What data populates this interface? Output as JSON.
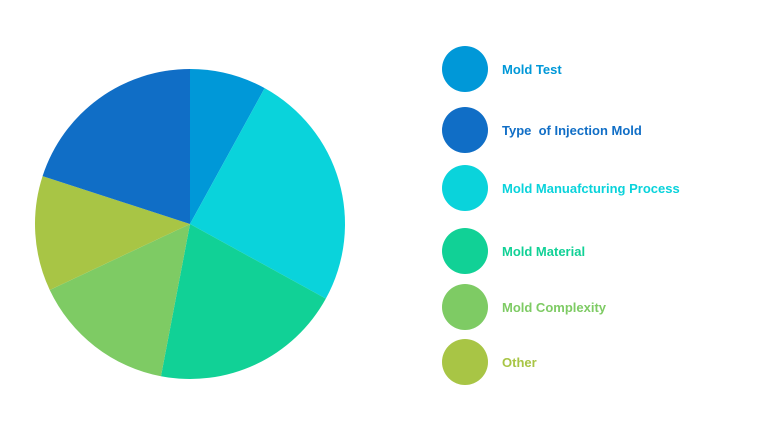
{
  "chart_data": {
    "type": "pie",
    "title": "",
    "legend_placement": "right",
    "slices": [
      {
        "label": "Mold Test",
        "value": 8,
        "color": "#0098D8"
      },
      {
        "label": "Type  of Injection Mold",
        "value": 20,
        "color": "#106EC6"
      },
      {
        "label": "Mold Manuafcturing Process",
        "value": 25,
        "color": "#0AD3DB"
      },
      {
        "label": "Mold Material",
        "value": 20,
        "color": "#11D196"
      },
      {
        "label": "Mold Complexity",
        "value": 15,
        "color": "#7ECB64"
      },
      {
        "label": "Other",
        "value": 12,
        "color": "#A8C545"
      }
    ],
    "draw_order": [
      "Mold Test",
      "Mold Manuafcturing Process",
      "Mold Material",
      "Mold Complexity",
      "Other",
      "Type  of Injection Mold"
    ]
  }
}
